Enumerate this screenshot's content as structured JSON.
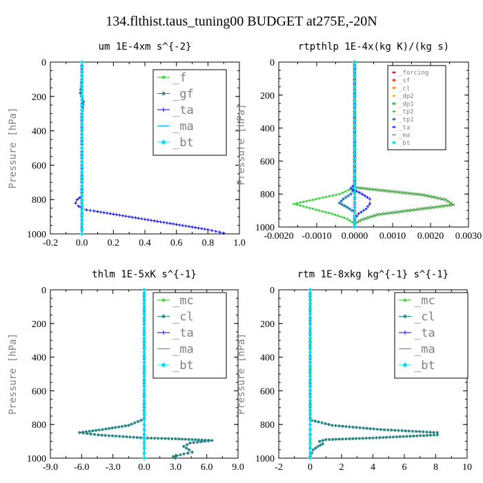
{
  "title": "134.flthist.taus_tuning00  BUDGET at275E,-20N",
  "chart_data": [
    {
      "type": "line",
      "title": "um   1E-4xm s^{-2}",
      "ylabel": "Pressure [hPa]",
      "xlim": [
        -0.2,
        1.0
      ],
      "ylim": [
        1000,
        0
      ],
      "xticks": [
        "-0.2",
        "0.0",
        "0.2",
        "0.4",
        "0.6",
        "0.8",
        "1.0"
      ],
      "yticks": [
        "0",
        "200",
        "400",
        "600",
        "800",
        "1000"
      ],
      "legend_position": "top-right",
      "series": [
        {
          "name": "_f",
          "color": "#00d000",
          "marker": "circle",
          "points": [
            [
              0.0,
              0
            ],
            [
              0.0,
              100
            ],
            [
              0.0,
              200
            ],
            [
              0.0,
              300
            ],
            [
              0.0,
              400
            ],
            [
              0.0,
              500
            ],
            [
              0.0,
              600
            ],
            [
              0.0,
              700
            ],
            [
              0.0,
              800
            ],
            [
              0.0,
              900
            ],
            [
              0.0,
              1000
            ]
          ]
        },
        {
          "name": "_gf",
          "color": "#208080",
          "marker": "star",
          "points": [
            [
              0.0,
              0
            ],
            [
              0.0,
              100
            ],
            [
              -0.01,
              180
            ],
            [
              0.01,
              230
            ],
            [
              0.0,
              300
            ],
            [
              0.0,
              400
            ],
            [
              0.0,
              500
            ],
            [
              0.0,
              600
            ],
            [
              0.0,
              700
            ],
            [
              0.0,
              800
            ],
            [
              0.0,
              900
            ],
            [
              0.0,
              1000
            ]
          ]
        },
        {
          "name": "_ta",
          "color": "#0000ff",
          "marker": "plus",
          "points": [
            [
              0.0,
              0
            ],
            [
              0.0,
              600
            ],
            [
              0.0,
              780
            ],
            [
              -0.03,
              800
            ],
            [
              -0.04,
              820
            ],
            [
              -0.02,
              840
            ],
            [
              0.0,
              850
            ],
            [
              0.03,
              860
            ],
            [
              0.1,
              870
            ],
            [
              0.2,
              885
            ],
            [
              0.3,
              900
            ],
            [
              0.4,
              915
            ],
            [
              0.5,
              930
            ],
            [
              0.6,
              945
            ],
            [
              0.7,
              960
            ],
            [
              0.8,
              975
            ],
            [
              0.85,
              985
            ],
            [
              0.9,
              995
            ]
          ]
        },
        {
          "name": "_ma",
          "color": "#00a0ff",
          "marker": "dash",
          "points": [
            [
              0.0,
              0
            ],
            [
              0.0,
              1000
            ]
          ]
        },
        {
          "name": "_bt",
          "color": "#00e0ff",
          "marker": "diamond",
          "points": [
            [
              0.0,
              0
            ],
            [
              0.0,
              1000
            ]
          ]
        }
      ]
    },
    {
      "type": "line",
      "title": "rtpthlp   1E-4x(kg K)/(kg s)",
      "ylabel": "Pressure [hPa]",
      "xlim": [
        -0.002,
        0.003
      ],
      "ylim": [
        1000,
        0
      ],
      "xticks": [
        "-0.0020",
        "-0.0010",
        "0.0000",
        "0.0010",
        "0.0020",
        "0.0030"
      ],
      "yticks": [
        "0",
        "200",
        "400",
        "600",
        "800",
        "1000"
      ],
      "legend_position": "top-right",
      "series": [
        {
          "name": "_forcing",
          "color": "#e00000",
          "marker": "circle",
          "points": [
            [
              0.0,
              0
            ],
            [
              0.0,
              100
            ],
            [
              0.0,
              200
            ],
            [
              0.0,
              300
            ],
            [
              0.0,
              400
            ],
            [
              0.0,
              500
            ],
            [
              0.0,
              600
            ],
            [
              0.0,
              700
            ],
            [
              0.0,
              800
            ],
            [
              0.0,
              900
            ],
            [
              0.0,
              1000
            ]
          ]
        },
        {
          "name": "_sf",
          "color": "#ff3000",
          "marker": "triangle",
          "points": [
            [
              0.0,
              0
            ],
            [
              0.0,
              1000
            ]
          ]
        },
        {
          "name": "_cl",
          "color": "#ff9000",
          "marker": "triangle",
          "points": [
            [
              0.0,
              0
            ],
            [
              0.0,
              1000
            ]
          ]
        },
        {
          "name": "_dp2",
          "color": "#e0c000",
          "marker": "circle",
          "points": [
            [
              0.0,
              0
            ],
            [
              0.0,
              1000
            ]
          ]
        },
        {
          "name": "_dp1",
          "color": "#40a040",
          "marker": "x",
          "points": [
            [
              0.0,
              0
            ],
            [
              0.0,
              760
            ],
            [
              0.0008,
              780
            ],
            [
              0.0018,
              805
            ],
            [
              0.0024,
              835
            ],
            [
              0.0026,
              865
            ],
            [
              0.0016,
              895
            ],
            [
              0.0006,
              925
            ],
            [
              0.0002,
              955
            ],
            [
              0.0,
              980
            ]
          ]
        },
        {
          "name": "_tp2",
          "color": "#40d040",
          "marker": "circle",
          "points": [
            [
              0.0,
              0
            ],
            [
              0.0,
              760
            ],
            [
              -0.0004,
              800
            ],
            [
              -0.0011,
              835
            ],
            [
              -0.0016,
              860
            ],
            [
              -0.0011,
              890
            ],
            [
              -0.0006,
              920
            ],
            [
              -0.0002,
              950
            ],
            [
              0.0,
              980
            ]
          ]
        },
        {
          "name": "_tp1",
          "color": "#2080c0",
          "marker": "star",
          "points": [
            [
              0.0,
              0
            ],
            [
              0.0,
              760
            ],
            [
              -0.0001,
              800
            ],
            [
              -0.0003,
              830
            ],
            [
              -0.0004,
              855
            ],
            [
              -0.0002,
              880
            ],
            [
              0.0,
              910
            ],
            [
              0.0,
              1000
            ]
          ]
        },
        {
          "name": "_ta",
          "color": "#0000ff",
          "marker": "plus",
          "points": [
            [
              0.0,
              0
            ],
            [
              0.0,
              740
            ],
            [
              -0.0001,
              765
            ],
            [
              0.0002,
              800
            ],
            [
              0.0004,
              830
            ],
            [
              0.0004,
              860
            ],
            [
              0.0003,
              890
            ],
            [
              0.0001,
              920
            ],
            [
              0.0,
              950
            ]
          ]
        },
        {
          "name": "_ma",
          "color": "#00a0ff",
          "marker": "dash",
          "points": [
            [
              0.0,
              0
            ],
            [
              0.0,
              1000
            ]
          ]
        },
        {
          "name": "_bt",
          "color": "#00e0ff",
          "marker": "diamond",
          "points": [
            [
              0.0,
              0
            ],
            [
              0.0,
              1000
            ]
          ]
        }
      ]
    },
    {
      "type": "line",
      "title": "thlm   1E-5xK s^{-1}",
      "ylabel": "Pressure [hPa]",
      "xlim": [
        -9.0,
        9.0
      ],
      "ylim": [
        1000,
        0
      ],
      "xticks": [
        "-9.0",
        "-6.0",
        "-3.0",
        "0.0",
        "3.0",
        "6.0",
        "9.0"
      ],
      "yticks": [
        "0",
        "200",
        "400",
        "600",
        "800",
        "1000"
      ],
      "legend_position": "top-right",
      "series": [
        {
          "name": "_mc",
          "color": "#00d000",
          "marker": "circle",
          "points": [
            [
              0.0,
              0
            ],
            [
              0.0,
              100
            ],
            [
              0.0,
              200
            ],
            [
              0.0,
              300
            ],
            [
              0.0,
              400
            ],
            [
              0.0,
              500
            ],
            [
              0.0,
              600
            ],
            [
              0.0,
              700
            ],
            [
              0.0,
              800
            ],
            [
              0.0,
              900
            ],
            [
              0.0,
              1000
            ]
          ]
        },
        {
          "name": "_cl",
          "color": "#208080",
          "marker": "star",
          "points": [
            [
              0.0,
              0
            ],
            [
              0.0,
              760
            ],
            [
              -0.3,
              775
            ],
            [
              -1.5,
              805
            ],
            [
              -4.0,
              830
            ],
            [
              -6.2,
              848
            ],
            [
              -4.4,
              862
            ],
            [
              0.0,
              880
            ],
            [
              3.0,
              885
            ],
            [
              6.5,
              895
            ],
            [
              4.4,
              910
            ],
            [
              3.8,
              930
            ],
            [
              4.3,
              950
            ],
            [
              4.6,
              965
            ],
            [
              3.8,
              975
            ],
            [
              2.8,
              990
            ],
            [
              3.0,
              1000
            ]
          ]
        },
        {
          "name": "_ta",
          "color": "#0000ff",
          "marker": "plus",
          "points": [
            [
              0.0,
              0
            ],
            [
              0.0,
              1000
            ]
          ]
        },
        {
          "name": "_ma",
          "color": "#00a0ff",
          "marker": "dash",
          "points": [
            [
              0.0,
              0
            ],
            [
              0.0,
              1000
            ]
          ]
        },
        {
          "name": "_bt",
          "color": "#00e0ff",
          "marker": "diamond",
          "points": [
            [
              0.0,
              0
            ],
            [
              0.0,
              1000
            ]
          ]
        }
      ]
    },
    {
      "type": "line",
      "title": "rtm   1E-8xkg kg^{-1} s^{-1}",
      "ylabel": "Pressure [hPa]",
      "xlim": [
        -2,
        10
      ],
      "ylim": [
        1000,
        0
      ],
      "xticks": [
        "-2",
        "0",
        "2",
        "4",
        "6",
        "8",
        "10"
      ],
      "yticks": [
        "0",
        "200",
        "400",
        "600",
        "800",
        "1000"
      ],
      "legend_position": "top-right",
      "series": [
        {
          "name": "_mc",
          "color": "#00d000",
          "marker": "circle",
          "points": [
            [
              0.0,
              0
            ],
            [
              0.0,
              100
            ],
            [
              0.0,
              200
            ],
            [
              0.0,
              300
            ],
            [
              0.0,
              400
            ],
            [
              0.0,
              500
            ],
            [
              0.0,
              600
            ],
            [
              0.0,
              700
            ],
            [
              0.0,
              800
            ],
            [
              0.0,
              900
            ],
            [
              0.0,
              1000
            ]
          ]
        },
        {
          "name": "_cl",
          "color": "#208080",
          "marker": "star",
          "points": [
            [
              0.0,
              0
            ],
            [
              0.0,
              760
            ],
            [
              0.1,
              775
            ],
            [
              1.4,
              805
            ],
            [
              4.5,
              830
            ],
            [
              8.1,
              848
            ],
            [
              8.1,
              862
            ],
            [
              4.0,
              880
            ],
            [
              1.0,
              890
            ],
            [
              0.6,
              900
            ],
            [
              0.8,
              915
            ],
            [
              0.5,
              930
            ],
            [
              0.2,
              950
            ],
            [
              0.1,
              970
            ],
            [
              0.0,
              990
            ],
            [
              0.0,
              1000
            ]
          ]
        },
        {
          "name": "_ta",
          "color": "#0000ff",
          "marker": "plus",
          "points": [
            [
              0.0,
              0
            ],
            [
              0.0,
              1000
            ]
          ]
        },
        {
          "name": "_ma",
          "color": "#00a0ff",
          "marker": "dash",
          "points": [
            [
              0.0,
              0
            ],
            [
              0.0,
              1000
            ]
          ]
        },
        {
          "name": "_bt",
          "color": "#00e0ff",
          "marker": "diamond",
          "points": [
            [
              0.0,
              0
            ],
            [
              0.0,
              1000
            ]
          ]
        }
      ]
    }
  ]
}
